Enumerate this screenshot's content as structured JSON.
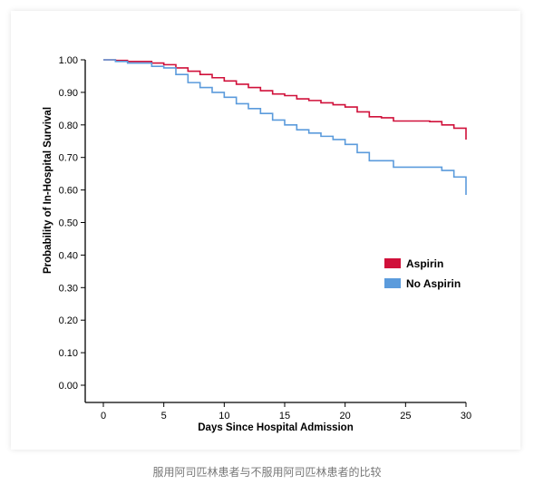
{
  "caption": "服用阿司匹林患者与不服用阿司匹林患者的比较",
  "colors": {
    "aspirin": "#d0103a",
    "no_aspirin": "#5b9bdc",
    "axis": "#000000",
    "background": "#ffffff"
  },
  "chart_data": {
    "type": "line",
    "step": true,
    "title": "",
    "xlabel": "Days Since Hospital Admission",
    "ylabel": "Probability of In-Hospital Survival",
    "xlim": [
      0,
      30
    ],
    "ylim": [
      0,
      1.0
    ],
    "xticks": [
      0,
      5,
      10,
      15,
      20,
      25,
      30
    ],
    "xtick_labels": [
      "0",
      "5",
      "10",
      "15",
      "20",
      "25",
      "30"
    ],
    "yticks": [
      0,
      0.1,
      0.2,
      0.3,
      0.4,
      0.5,
      0.6,
      0.7,
      0.8,
      0.9,
      1.0
    ],
    "ytick_labels": [
      "0.00",
      "0.10",
      "0.20",
      "0.30",
      "0.40",
      "0.50",
      "0.60",
      "0.70",
      "0.80",
      "0.90",
      "1.00"
    ],
    "grid": false,
    "legend_position": "center-right",
    "series": [
      {
        "name": "Aspirin",
        "color": "#d0103a",
        "x": [
          0,
          1,
          2,
          4,
          5,
          6,
          7,
          8,
          9,
          10,
          11,
          12,
          13,
          14,
          15,
          16,
          17,
          18,
          19,
          20,
          21,
          22,
          23,
          24,
          25,
          26,
          27,
          28,
          29,
          30
        ],
        "y": [
          1.0,
          0.998,
          0.995,
          0.99,
          0.985,
          0.975,
          0.965,
          0.955,
          0.945,
          0.935,
          0.925,
          0.915,
          0.905,
          0.895,
          0.89,
          0.88,
          0.875,
          0.868,
          0.862,
          0.855,
          0.84,
          0.825,
          0.822,
          0.812,
          0.812,
          0.812,
          0.81,
          0.8,
          0.79,
          0.755
        ]
      },
      {
        "name": "No Aspirin",
        "color": "#5b9bdc",
        "x": [
          0,
          1,
          2,
          4,
          5,
          6,
          7,
          8,
          9,
          10,
          11,
          12,
          13,
          14,
          15,
          16,
          17,
          18,
          19,
          20,
          21,
          22,
          23,
          24,
          25,
          26,
          27,
          28,
          29,
          30
        ],
        "y": [
          1.0,
          0.995,
          0.99,
          0.98,
          0.975,
          0.955,
          0.93,
          0.915,
          0.9,
          0.885,
          0.865,
          0.85,
          0.835,
          0.815,
          0.8,
          0.785,
          0.775,
          0.765,
          0.755,
          0.74,
          0.715,
          0.69,
          0.69,
          0.67,
          0.67,
          0.67,
          0.67,
          0.66,
          0.64,
          0.585
        ]
      }
    ]
  }
}
